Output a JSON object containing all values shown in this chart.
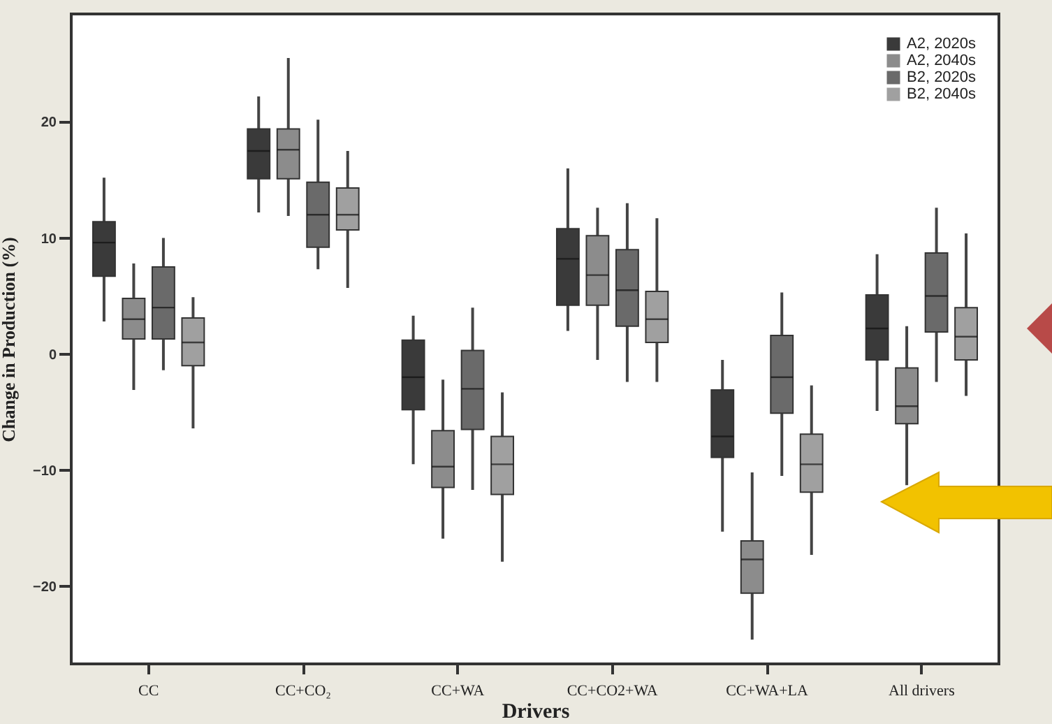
{
  "chart_data": {
    "type": "box",
    "xlabel": "Drivers",
    "ylabel": "Change in Production (%)",
    "categories": [
      "CC",
      "CC+CO₂",
      "CC+WA",
      "CC+CO2+WA",
      "CC+WA+LA",
      "All drivers"
    ],
    "ylim": [
      -26.7,
      29.3
    ],
    "yticks": [
      -20,
      -10,
      0,
      10,
      20
    ],
    "grid": false,
    "legend": "top right",
    "series": [
      {
        "name": "A2, 2020s",
        "color": "#3a3a3a",
        "boxes": [
          {
            "low": 2.8,
            "q1": 6.7,
            "median": 9.6,
            "q3": 11.4,
            "high": 15.2
          },
          {
            "low": 12.2,
            "q1": 15.1,
            "median": 17.5,
            "q3": 19.4,
            "high": 22.2
          },
          {
            "low": -9.5,
            "q1": -4.8,
            "median": -2,
            "q3": 1.2,
            "high": 3.3
          },
          {
            "low": 2,
            "q1": 4.2,
            "median": 8.2,
            "q3": 10.8,
            "high": 16
          },
          {
            "low": -15.3,
            "q1": -8.9,
            "median": -7.1,
            "q3": -3.1,
            "high": -0.5
          },
          {
            "low": -4.9,
            "q1": -0.5,
            "median": 2.2,
            "q3": 5.1,
            "high": 8.6
          }
        ]
      },
      {
        "name": "A2, 2040s",
        "color": "#8c8c8c",
        "boxes": [
          {
            "low": -3.1,
            "q1": 1.3,
            "median": 3,
            "q3": 4.8,
            "high": 7.8
          },
          {
            "low": 11.9,
            "q1": 15.1,
            "median": 17.6,
            "q3": 19.4,
            "high": 25.5
          },
          {
            "low": -15.9,
            "q1": -11.5,
            "median": -9.7,
            "q3": -6.6,
            "high": -2.2
          },
          {
            "low": -0.5,
            "q1": 4.2,
            "median": 6.8,
            "q3": 10.2,
            "high": 12.6
          },
          {
            "low": -24.6,
            "q1": -20.6,
            "median": -17.7,
            "q3": -16.1,
            "high": -10.2
          },
          {
            "low": -11.3,
            "q1": -6,
            "median": -4.5,
            "q3": -1.2,
            "high": 2.4
          }
        ]
      },
      {
        "name": "B2, 2020s",
        "color": "#6a6a6a",
        "boxes": [
          {
            "low": -1.4,
            "q1": 1.3,
            "median": 4,
            "q3": 7.5,
            "high": 10
          },
          {
            "low": 7.3,
            "q1": 9.2,
            "median": 12,
            "q3": 14.8,
            "high": 20.2
          },
          {
            "low": -11.7,
            "q1": -6.5,
            "median": -3,
            "q3": 0.3,
            "high": 4
          },
          {
            "low": -2.4,
            "q1": 2.4,
            "median": 5.5,
            "q3": 9,
            "high": 13
          },
          {
            "low": -10.5,
            "q1": -5.1,
            "median": -2,
            "q3": 1.6,
            "high": 5.3
          },
          {
            "low": -2.4,
            "q1": 1.9,
            "median": 5,
            "q3": 8.7,
            "high": 12.6
          }
        ]
      },
      {
        "name": "B2, 2040s",
        "color": "#a0a0a0",
        "boxes": [
          {
            "low": -6.4,
            "q1": -1,
            "median": 1,
            "q3": 3.1,
            "high": 4.9
          },
          {
            "low": 5.7,
            "q1": 10.7,
            "median": 12,
            "q3": 14.3,
            "high": 17.5
          },
          {
            "low": -17.9,
            "q1": -12.1,
            "median": -9.5,
            "q3": -7.1,
            "high": -3.3
          },
          {
            "low": -2.4,
            "q1": 1,
            "median": 3,
            "q3": 5.4,
            "high": 11.7
          },
          {
            "low": -17.3,
            "q1": -11.9,
            "median": -9.5,
            "q3": -6.9,
            "high": -2.7
          },
          {
            "low": -3.6,
            "q1": -0.5,
            "median": 1.5,
            "q3": 4,
            "high": 10.4
          }
        ]
      }
    ]
  }
}
